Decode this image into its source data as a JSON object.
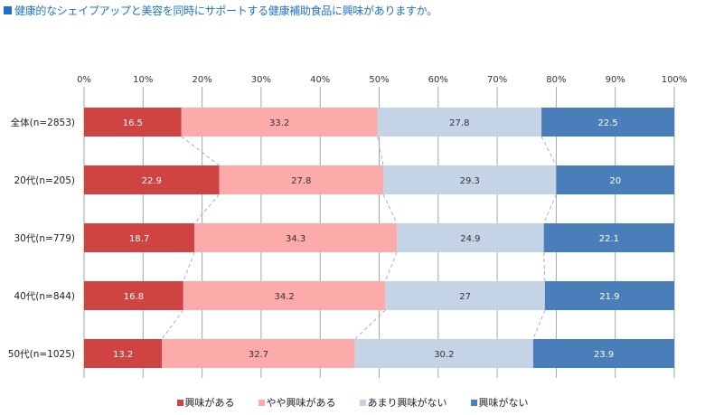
{
  "title": "健康的なシェイプアップと美容を同時にサポートする健康補助食品に興味がありますか。",
  "chart_data": {
    "type": "bar",
    "orientation": "horizontal",
    "stacked": "percent",
    "title": "健康的なシェイプアップと美容を同時にサポートする健康補助食品に興味がありますか。",
    "xlabel": "",
    "ylabel": "",
    "xlim": [
      0,
      100
    ],
    "x_ticks": [
      "0%",
      "10%",
      "20%",
      "30%",
      "40%",
      "50%",
      "60%",
      "70%",
      "80%",
      "90%",
      "100%"
    ],
    "grid": true,
    "legend_position": "bottom",
    "categories": [
      "全体(n=2853)",
      "20代(n=205)",
      "30代(n=779)",
      "40代(n=844)",
      "50代(n=1025)"
    ],
    "series": [
      {
        "name": "興味がある",
        "color": "#d04343",
        "label_color": "#ffffff",
        "values": [
          16.5,
          22.9,
          18.7,
          16.8,
          13.2
        ]
      },
      {
        "name": "やや興味がある",
        "color": "#fcaaaa",
        "label_color": "#333333",
        "values": [
          33.2,
          27.8,
          34.3,
          34.2,
          32.7
        ]
      },
      {
        "name": "あまり興味がない",
        "color": "#c4d4e6",
        "label_color": "#333333",
        "values": [
          27.8,
          29.3,
          24.9,
          27,
          30.2
        ]
      },
      {
        "name": "興味がない",
        "color": "#4a7eba",
        "label_color": "#ffffff",
        "values": [
          22.5,
          20,
          22.1,
          21.9,
          23.9
        ]
      }
    ],
    "data_labels": [
      [
        "16.5",
        "33.2",
        "27.8",
        "22.5"
      ],
      [
        "22.9",
        "27.8",
        "29.3",
        "20"
      ],
      [
        "18.7",
        "34.3",
        "24.9",
        "22.1"
      ],
      [
        "16.8",
        "34.2",
        "27",
        "21.9"
      ],
      [
        "13.2",
        "32.7",
        "30.2",
        "23.9"
      ]
    ],
    "series_lines": true
  }
}
